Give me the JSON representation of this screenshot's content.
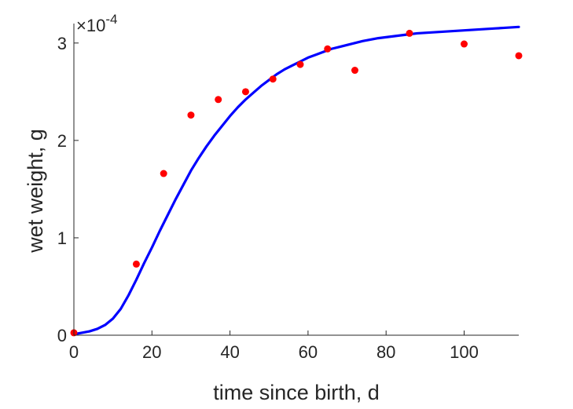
{
  "chart_data": {
    "type": "scatter",
    "xlabel": "time since birth, d",
    "ylabel": "wet weight, g",
    "xlim": [
      0,
      114
    ],
    "ylim": [
      0,
      0.00032
    ],
    "x_ticks": [
      0,
      20,
      40,
      60,
      80,
      100
    ],
    "x_tick_labels": [
      "0",
      "20",
      "40",
      "60",
      "80",
      "100"
    ],
    "y_ticks": [
      0,
      0.0001,
      0.0002,
      0.0003
    ],
    "y_tick_labels": [
      "0",
      "1",
      "2",
      "3"
    ],
    "y_exponent": {
      "base": "×10",
      "power": "-4"
    },
    "grid": false,
    "series": [
      {
        "kind": "points",
        "color": "#ff0000",
        "x": [
          0,
          16,
          23,
          30,
          37,
          44,
          51,
          58,
          65,
          72,
          86,
          100,
          114
        ],
        "y": [
          2.5e-06,
          7.3e-05,
          0.000166,
          0.000226,
          0.000242,
          0.00025,
          0.000263,
          0.000278,
          0.000294,
          0.000272,
          0.00031,
          0.000299,
          0.000287
        ]
      },
      {
        "kind": "line",
        "color": "#0000ff",
        "x": [
          0,
          2,
          4,
          6,
          8,
          10,
          12,
          14,
          16,
          18,
          20,
          22,
          24,
          26,
          28,
          30,
          32,
          34,
          36,
          38,
          40,
          42,
          44,
          46,
          48,
          50,
          52,
          54,
          56,
          58,
          60,
          62,
          64,
          66,
          68,
          70,
          72,
          74,
          76,
          78,
          80,
          82,
          84,
          86,
          88,
          90,
          92,
          94,
          96,
          98,
          100,
          102,
          104,
          106,
          108,
          110,
          112,
          114
        ],
        "y": [
          1e-06,
          2.5e-06,
          4e-06,
          6.5e-06,
          1.05e-05,
          1.7e-05,
          2.7e-05,
          4.1e-05,
          5.7e-05,
          7.4e-05,
          9e-05,
          0.000107,
          0.000123,
          0.000139,
          0.000154,
          0.000169,
          0.000182,
          0.000194,
          0.000205,
          0.000215,
          0.000225,
          0.000234,
          0.000242,
          0.000249,
          0.000256,
          0.000262,
          0.000268,
          0.000273,
          0.000277,
          0.000281,
          0.000285,
          0.000288,
          0.000291,
          0.000294,
          0.000296,
          0.000298,
          0.0003,
          0.000302,
          0.0003035,
          0.000305,
          0.000306,
          0.000307,
          0.000308,
          0.000309,
          0.00031,
          0.0003105,
          0.000311,
          0.0003115,
          0.000312,
          0.0003125,
          0.000313,
          0.0003135,
          0.000314,
          0.0003145,
          0.000315,
          0.0003155,
          0.000316,
          0.0003165
        ]
      }
    ]
  }
}
